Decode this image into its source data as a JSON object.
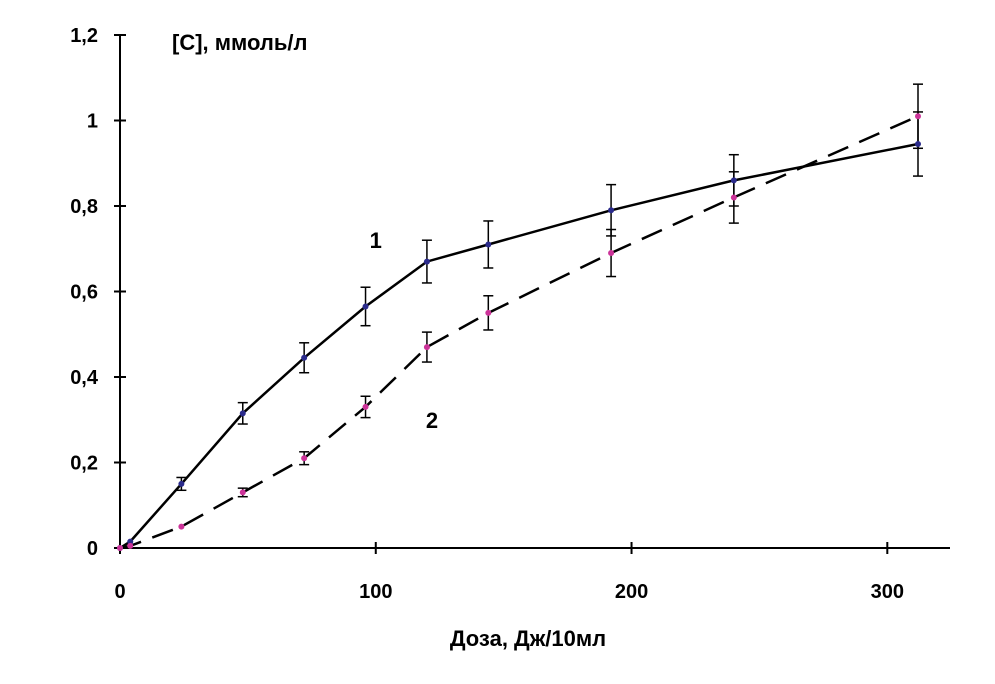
{
  "chart_data": {
    "type": "line",
    "title": "",
    "ylabel": "[C], ммоль/л",
    "xlabel": "Доза, Дж/10мл",
    "xlim": [
      0,
      320
    ],
    "ylim": [
      0,
      1.2
    ],
    "x_ticks": [
      {
        "value": 0,
        "label": "0"
      },
      {
        "value": 100,
        "label": "100"
      },
      {
        "value": 200,
        "label": "200"
      },
      {
        "value": 300,
        "label": "300"
      }
    ],
    "y_ticks": [
      {
        "value": 0,
        "label": "0"
      },
      {
        "value": 0.2,
        "label": "0,2"
      },
      {
        "value": 0.4,
        "label": "0,4"
      },
      {
        "value": 0.6,
        "label": "0,6"
      },
      {
        "value": 0.8,
        "label": "0,8"
      },
      {
        "value": 1.0,
        "label": "1"
      },
      {
        "value": 1.2,
        "label": "1,2"
      }
    ],
    "grid": false,
    "series": [
      {
        "name": "1",
        "line_style": "solid",
        "marker_color": "#2b2b8c",
        "points": [
          {
            "x": 0,
            "y": 0,
            "err": 0
          },
          {
            "x": 4,
            "y": 0.015,
            "err": 0
          },
          {
            "x": 24,
            "y": 0.15,
            "err": 0.015
          },
          {
            "x": 48,
            "y": 0.315,
            "err": 0.025
          },
          {
            "x": 72,
            "y": 0.445,
            "err": 0.035
          },
          {
            "x": 96,
            "y": 0.565,
            "err": 0.045
          },
          {
            "x": 120,
            "y": 0.67,
            "err": 0.05
          },
          {
            "x": 144,
            "y": 0.71,
            "err": 0.055
          },
          {
            "x": 192,
            "y": 0.79,
            "err": 0.06
          },
          {
            "x": 240,
            "y": 0.86,
            "err": 0.06
          },
          {
            "x": 312,
            "y": 0.945,
            "err": 0.075
          }
        ]
      },
      {
        "name": "2",
        "line_style": "dashed",
        "marker_color": "#cc3399",
        "points": [
          {
            "x": 0,
            "y": 0,
            "err": 0
          },
          {
            "x": 4,
            "y": 0.005,
            "err": 0
          },
          {
            "x": 24,
            "y": 0.05,
            "err": 0
          },
          {
            "x": 48,
            "y": 0.13,
            "err": 0.01
          },
          {
            "x": 72,
            "y": 0.21,
            "err": 0.015
          },
          {
            "x": 96,
            "y": 0.33,
            "err": 0.025
          },
          {
            "x": 120,
            "y": 0.47,
            "err": 0.035
          },
          {
            "x": 144,
            "y": 0.55,
            "err": 0.04
          },
          {
            "x": 192,
            "y": 0.69,
            "err": 0.055
          },
          {
            "x": 240,
            "y": 0.82,
            "err": 0.06
          },
          {
            "x": 312,
            "y": 1.01,
            "err": 0.075
          }
        ]
      }
    ],
    "annotations": [
      {
        "text": "1",
        "x": 100,
        "y": 0.72
      },
      {
        "text": "2",
        "x": 122,
        "y": 0.3
      }
    ]
  }
}
